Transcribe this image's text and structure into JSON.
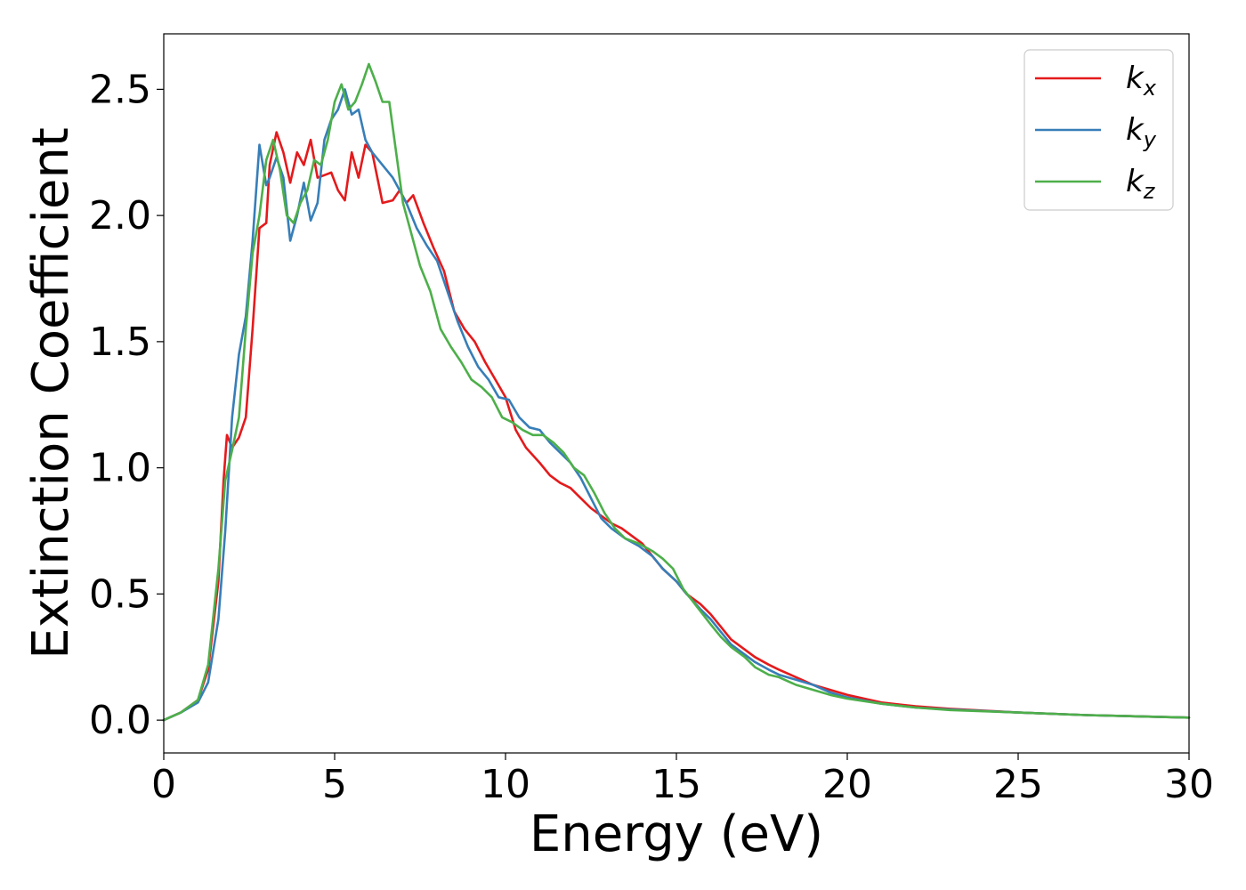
{
  "chart_data": {
    "type": "line",
    "title": "",
    "xlabel": "Energy (eV)",
    "ylabel": "Extinction Coefficient",
    "xlim": [
      0,
      30
    ],
    "ylim": [
      -0.13,
      2.72
    ],
    "xticks": [
      0,
      5,
      10,
      15,
      20,
      25,
      30
    ],
    "xtick_labels": [
      "0",
      "5",
      "10",
      "15",
      "20",
      "25",
      "30"
    ],
    "yticks": [
      0.0,
      0.5,
      1.0,
      1.5,
      2.0,
      2.5
    ],
    "ytick_labels": [
      "0.0",
      "0.5",
      "1.0",
      "1.5",
      "2.0",
      "2.5"
    ],
    "grid": false,
    "legend": {
      "position": "top-right"
    },
    "series": [
      {
        "name": "k_x",
        "label_base": "k",
        "label_sub": "x",
        "color": "#e41a1c",
        "points": [
          [
            0,
            0
          ],
          [
            0.5,
            0.03
          ],
          [
            1.0,
            0.08
          ],
          [
            1.3,
            0.2
          ],
          [
            1.6,
            0.55
          ],
          [
            1.75,
            0.95
          ],
          [
            1.85,
            1.13
          ],
          [
            2.0,
            1.08
          ],
          [
            2.2,
            1.12
          ],
          [
            2.4,
            1.2
          ],
          [
            2.6,
            1.55
          ],
          [
            2.8,
            1.95
          ],
          [
            3.0,
            1.97
          ],
          [
            3.1,
            2.2
          ],
          [
            3.3,
            2.33
          ],
          [
            3.5,
            2.25
          ],
          [
            3.7,
            2.13
          ],
          [
            3.9,
            2.25
          ],
          [
            4.1,
            2.2
          ],
          [
            4.3,
            2.3
          ],
          [
            4.5,
            2.15
          ],
          [
            4.7,
            2.16
          ],
          [
            4.9,
            2.17
          ],
          [
            5.1,
            2.1
          ],
          [
            5.3,
            2.06
          ],
          [
            5.5,
            2.25
          ],
          [
            5.7,
            2.15
          ],
          [
            5.9,
            2.28
          ],
          [
            6.1,
            2.25
          ],
          [
            6.4,
            2.05
          ],
          [
            6.7,
            2.06
          ],
          [
            6.9,
            2.1
          ],
          [
            7.1,
            2.05
          ],
          [
            7.3,
            2.08
          ],
          [
            7.6,
            1.97
          ],
          [
            7.9,
            1.87
          ],
          [
            8.2,
            1.78
          ],
          [
            8.5,
            1.62
          ],
          [
            8.8,
            1.55
          ],
          [
            9.1,
            1.5
          ],
          [
            9.4,
            1.42
          ],
          [
            9.7,
            1.35
          ],
          [
            10.0,
            1.28
          ],
          [
            10.3,
            1.15
          ],
          [
            10.6,
            1.08
          ],
          [
            11.0,
            1.02
          ],
          [
            11.3,
            0.97
          ],
          [
            11.6,
            0.94
          ],
          [
            11.9,
            0.92
          ],
          [
            12.2,
            0.88
          ],
          [
            12.5,
            0.84
          ],
          [
            12.8,
            0.81
          ],
          [
            13.1,
            0.78
          ],
          [
            13.4,
            0.76
          ],
          [
            13.7,
            0.73
          ],
          [
            14.0,
            0.7
          ],
          [
            14.3,
            0.65
          ],
          [
            14.6,
            0.6
          ],
          [
            15.0,
            0.55
          ],
          [
            15.3,
            0.5
          ],
          [
            15.7,
            0.46
          ],
          [
            16.0,
            0.42
          ],
          [
            16.3,
            0.37
          ],
          [
            16.6,
            0.32
          ],
          [
            17.0,
            0.28
          ],
          [
            17.3,
            0.25
          ],
          [
            17.7,
            0.22
          ],
          [
            18.0,
            0.2
          ],
          [
            18.5,
            0.17
          ],
          [
            19.0,
            0.14
          ],
          [
            19.5,
            0.12
          ],
          [
            20.0,
            0.1
          ],
          [
            21.0,
            0.07
          ],
          [
            22.0,
            0.055
          ],
          [
            23.0,
            0.045
          ],
          [
            25.0,
            0.03
          ],
          [
            27.0,
            0.02
          ],
          [
            30.0,
            0.01
          ]
        ]
      },
      {
        "name": "k_y",
        "label_base": "k",
        "label_sub": "y",
        "color": "#377eb8",
        "points": [
          [
            0,
            0
          ],
          [
            0.5,
            0.03
          ],
          [
            1.0,
            0.07
          ],
          [
            1.3,
            0.15
          ],
          [
            1.6,
            0.4
          ],
          [
            1.8,
            0.75
          ],
          [
            2.0,
            1.2
          ],
          [
            2.2,
            1.45
          ],
          [
            2.4,
            1.6
          ],
          [
            2.6,
            1.9
          ],
          [
            2.8,
            2.28
          ],
          [
            3.0,
            2.12
          ],
          [
            3.1,
            2.15
          ],
          [
            3.3,
            2.23
          ],
          [
            3.5,
            2.15
          ],
          [
            3.7,
            1.9
          ],
          [
            3.9,
            2.0
          ],
          [
            4.1,
            2.13
          ],
          [
            4.3,
            1.98
          ],
          [
            4.5,
            2.05
          ],
          [
            4.7,
            2.3
          ],
          [
            4.9,
            2.38
          ],
          [
            5.1,
            2.42
          ],
          [
            5.3,
            2.5
          ],
          [
            5.5,
            2.4
          ],
          [
            5.7,
            2.42
          ],
          [
            5.9,
            2.3
          ],
          [
            6.1,
            2.25
          ],
          [
            6.4,
            2.2
          ],
          [
            6.7,
            2.15
          ],
          [
            6.9,
            2.1
          ],
          [
            7.1,
            2.05
          ],
          [
            7.4,
            1.95
          ],
          [
            7.7,
            1.88
          ],
          [
            8.0,
            1.82
          ],
          [
            8.3,
            1.7
          ],
          [
            8.6,
            1.58
          ],
          [
            8.9,
            1.48
          ],
          [
            9.2,
            1.4
          ],
          [
            9.5,
            1.35
          ],
          [
            9.8,
            1.28
          ],
          [
            10.1,
            1.27
          ],
          [
            10.4,
            1.2
          ],
          [
            10.7,
            1.16
          ],
          [
            11.0,
            1.15
          ],
          [
            11.3,
            1.1
          ],
          [
            11.6,
            1.06
          ],
          [
            11.9,
            1.02
          ],
          [
            12.2,
            0.96
          ],
          [
            12.5,
            0.88
          ],
          [
            12.8,
            0.8
          ],
          [
            13.1,
            0.76
          ],
          [
            13.5,
            0.72
          ],
          [
            13.9,
            0.69
          ],
          [
            14.3,
            0.65
          ],
          [
            14.6,
            0.6
          ],
          [
            15.0,
            0.55
          ],
          [
            15.3,
            0.5
          ],
          [
            15.7,
            0.44
          ],
          [
            16.0,
            0.4
          ],
          [
            16.3,
            0.35
          ],
          [
            16.6,
            0.3
          ],
          [
            17.0,
            0.26
          ],
          [
            17.3,
            0.23
          ],
          [
            17.7,
            0.2
          ],
          [
            18.0,
            0.18
          ],
          [
            18.5,
            0.16
          ],
          [
            19.0,
            0.14
          ],
          [
            19.5,
            0.11
          ],
          [
            20.0,
            0.09
          ],
          [
            21.0,
            0.065
          ],
          [
            22.0,
            0.05
          ],
          [
            23.0,
            0.042
          ],
          [
            25.0,
            0.03
          ],
          [
            27.0,
            0.02
          ],
          [
            30.0,
            0.01
          ]
        ]
      },
      {
        "name": "k_z",
        "label_base": "k",
        "label_sub": "z",
        "color": "#4daf4a",
        "points": [
          [
            0,
            0
          ],
          [
            0.5,
            0.03
          ],
          [
            1.0,
            0.08
          ],
          [
            1.3,
            0.22
          ],
          [
            1.6,
            0.6
          ],
          [
            1.8,
            0.95
          ],
          [
            2.0,
            1.07
          ],
          [
            2.2,
            1.2
          ],
          [
            2.4,
            1.55
          ],
          [
            2.6,
            1.85
          ],
          [
            2.8,
            2.0
          ],
          [
            3.0,
            2.22
          ],
          [
            3.2,
            2.3
          ],
          [
            3.4,
            2.18
          ],
          [
            3.6,
            2.0
          ],
          [
            3.8,
            1.97
          ],
          [
            4.0,
            2.05
          ],
          [
            4.2,
            2.1
          ],
          [
            4.4,
            2.22
          ],
          [
            4.6,
            2.2
          ],
          [
            4.8,
            2.3
          ],
          [
            5.0,
            2.45
          ],
          [
            5.2,
            2.52
          ],
          [
            5.4,
            2.42
          ],
          [
            5.6,
            2.45
          ],
          [
            5.8,
            2.52
          ],
          [
            6.0,
            2.6
          ],
          [
            6.2,
            2.53
          ],
          [
            6.4,
            2.45
          ],
          [
            6.6,
            2.45
          ],
          [
            6.8,
            2.25
          ],
          [
            7.0,
            2.05
          ],
          [
            7.2,
            1.95
          ],
          [
            7.5,
            1.8
          ],
          [
            7.8,
            1.7
          ],
          [
            8.1,
            1.55
          ],
          [
            8.4,
            1.48
          ],
          [
            8.7,
            1.42
          ],
          [
            9.0,
            1.35
          ],
          [
            9.3,
            1.32
          ],
          [
            9.6,
            1.28
          ],
          [
            9.9,
            1.2
          ],
          [
            10.2,
            1.18
          ],
          [
            10.5,
            1.15
          ],
          [
            10.8,
            1.13
          ],
          [
            11.1,
            1.13
          ],
          [
            11.4,
            1.1
          ],
          [
            11.7,
            1.06
          ],
          [
            12.0,
            1.0
          ],
          [
            12.3,
            0.97
          ],
          [
            12.6,
            0.9
          ],
          [
            12.9,
            0.82
          ],
          [
            13.2,
            0.76
          ],
          [
            13.5,
            0.72
          ],
          [
            13.9,
            0.7
          ],
          [
            14.3,
            0.67
          ],
          [
            14.6,
            0.64
          ],
          [
            14.9,
            0.6
          ],
          [
            15.2,
            0.52
          ],
          [
            15.6,
            0.45
          ],
          [
            16.0,
            0.38
          ],
          [
            16.3,
            0.33
          ],
          [
            16.6,
            0.29
          ],
          [
            17.0,
            0.25
          ],
          [
            17.3,
            0.21
          ],
          [
            17.7,
            0.18
          ],
          [
            18.0,
            0.17
          ],
          [
            18.5,
            0.14
          ],
          [
            19.0,
            0.12
          ],
          [
            19.5,
            0.1
          ],
          [
            20.0,
            0.085
          ],
          [
            21.0,
            0.065
          ],
          [
            22.0,
            0.05
          ],
          [
            23.0,
            0.04
          ],
          [
            25.0,
            0.03
          ],
          [
            27.0,
            0.02
          ],
          [
            30.0,
            0.01
          ]
        ]
      }
    ]
  }
}
